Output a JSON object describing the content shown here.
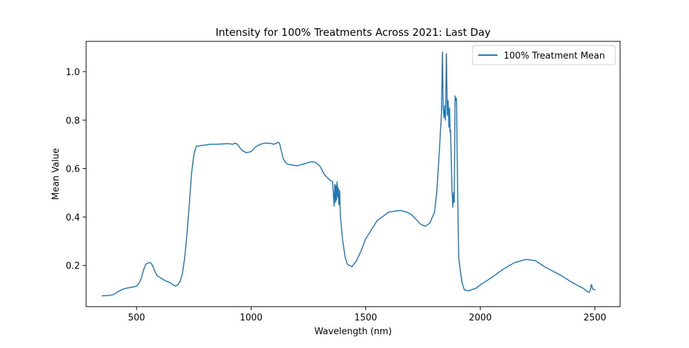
{
  "chart_data": {
    "type": "line",
    "title": "Intensity for 100% Treatments Across 2021: Last Day",
    "xlabel": "Wavelength (nm)",
    "ylabel": "Mean Value",
    "xlim": [
      280,
      2610
    ],
    "ylim": [
      0.03,
      1.125
    ],
    "xticks": [
      500,
      1000,
      1500,
      2000,
      2500
    ],
    "xtick_labels": [
      "500",
      "1000",
      "1500",
      "2000",
      "2500"
    ],
    "yticks": [
      0.2,
      0.4,
      0.6,
      0.8,
      1.0
    ],
    "ytick_labels": [
      "0.2",
      "0.4",
      "0.6",
      "0.8",
      "1.0"
    ],
    "grid": false,
    "legend_position": "top-right",
    "series": [
      {
        "name": "100% Treatment Mean",
        "color": "#1f77b4",
        "x": [
          350,
          380,
          400,
          420,
          440,
          460,
          480,
          500,
          510,
          520,
          530,
          540,
          550,
          560,
          570,
          580,
          590,
          600,
          620,
          630,
          640,
          660,
          670,
          680,
          690,
          700,
          710,
          720,
          730,
          740,
          750,
          760,
          800,
          820,
          850,
          900,
          920,
          930,
          940,
          960,
          980,
          1000,
          1020,
          1040,
          1060,
          1080,
          1100,
          1110,
          1120,
          1125,
          1130,
          1140,
          1150,
          1160,
          1200,
          1240,
          1260,
          1280,
          1300,
          1320,
          1340,
          1355,
          1360,
          1362,
          1365,
          1368,
          1370,
          1372,
          1375,
          1378,
          1380,
          1383,
          1386,
          1390,
          1395,
          1400,
          1410,
          1420,
          1440,
          1460,
          1480,
          1500,
          1550,
          1600,
          1650,
          1680,
          1700,
          1740,
          1760,
          1780,
          1800,
          1810,
          1820,
          1830,
          1835,
          1838,
          1842,
          1845,
          1848,
          1852,
          1856,
          1860,
          1863,
          1866,
          1868,
          1870,
          1873,
          1876,
          1880,
          1883,
          1886,
          1890,
          1893,
          1896,
          1900,
          1903,
          1906,
          1910,
          1920,
          1930,
          1940,
          1950,
          1960,
          1980,
          2000,
          2050,
          2100,
          2150,
          2200,
          2240,
          2280,
          2300,
          2350,
          2400,
          2450,
          2470,
          2475,
          2480,
          2485,
          2490,
          2495,
          2500
        ],
        "y": [
          0.075,
          0.076,
          0.08,
          0.092,
          0.102,
          0.107,
          0.11,
          0.115,
          0.125,
          0.145,
          0.18,
          0.205,
          0.21,
          0.212,
          0.2,
          0.175,
          0.158,
          0.152,
          0.14,
          0.135,
          0.132,
          0.12,
          0.115,
          0.12,
          0.135,
          0.165,
          0.23,
          0.33,
          0.45,
          0.58,
          0.655,
          0.692,
          0.697,
          0.7,
          0.7,
          0.703,
          0.7,
          0.705,
          0.7,
          0.675,
          0.665,
          0.67,
          0.69,
          0.7,
          0.705,
          0.705,
          0.7,
          0.705,
          0.708,
          0.7,
          0.68,
          0.64,
          0.625,
          0.618,
          0.611,
          0.622,
          0.628,
          0.626,
          0.61,
          0.575,
          0.555,
          0.545,
          0.48,
          0.445,
          0.535,
          0.46,
          0.53,
          0.47,
          0.545,
          0.48,
          0.52,
          0.45,
          0.51,
          0.4,
          0.345,
          0.3,
          0.235,
          0.205,
          0.195,
          0.22,
          0.26,
          0.31,
          0.385,
          0.42,
          0.427,
          0.42,
          0.41,
          0.37,
          0.362,
          0.375,
          0.42,
          0.5,
          0.65,
          0.82,
          1.08,
          0.85,
          0.81,
          0.86,
          0.8,
          1.075,
          0.82,
          0.88,
          0.77,
          0.85,
          0.75,
          0.76,
          0.65,
          0.52,
          0.44,
          0.5,
          0.46,
          0.9,
          0.88,
          0.89,
          0.6,
          0.4,
          0.23,
          0.2,
          0.13,
          0.1,
          0.097,
          0.095,
          0.1,
          0.105,
          0.12,
          0.15,
          0.185,
          0.212,
          0.225,
          0.22,
          0.195,
          0.185,
          0.16,
          0.13,
          0.105,
          0.09,
          0.09,
          0.098,
          0.122,
          0.104,
          0.1,
          0.1
        ]
      }
    ]
  }
}
